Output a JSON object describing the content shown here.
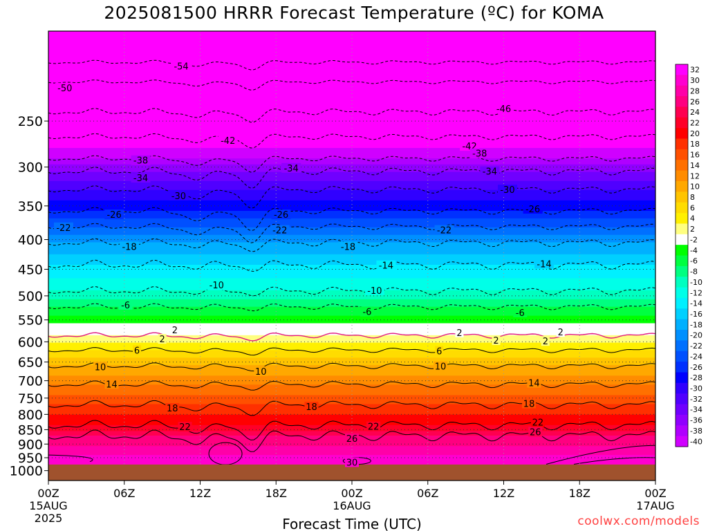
{
  "title": "2025081500 HRRR Forecast Temperature (ºC) for KOMA",
  "credit": "coolwx.com/models",
  "colors": {
    "ground": "#a0522d",
    "grid": "#9a9a9a",
    "zero_isotherm": "#e0187e"
  },
  "chart_data": {
    "type": "heatmap",
    "title": "2025081500 HRRR Forecast Temperature (ºC) for KOMA",
    "xlabel": "Forecast Time (UTC)",
    "ylabel": "",
    "x_range_hours": [
      0,
      48
    ],
    "y_range_hpa": [
      175,
      1040
    ],
    "y_scale": "log-pressure",
    "x_ticks": [
      {
        "hour": 0,
        "label": "00Z",
        "sub1": "15AUG",
        "sub2": "2025"
      },
      {
        "hour": 6,
        "label": "06Z",
        "sub1": "",
        "sub2": ""
      },
      {
        "hour": 12,
        "label": "12Z",
        "sub1": "",
        "sub2": ""
      },
      {
        "hour": 18,
        "label": "18Z",
        "sub1": "",
        "sub2": ""
      },
      {
        "hour": 24,
        "label": "00Z",
        "sub1": "16AUG",
        "sub2": ""
      },
      {
        "hour": 30,
        "label": "06Z",
        "sub1": "",
        "sub2": ""
      },
      {
        "hour": 36,
        "label": "12Z",
        "sub1": "",
        "sub2": ""
      },
      {
        "hour": 42,
        "label": "18Z",
        "sub1": "",
        "sub2": ""
      },
      {
        "hour": 48,
        "label": "00Z",
        "sub1": "17AUG",
        "sub2": ""
      }
    ],
    "y_ticks": [
      {
        "p": 250,
        "label": "250"
      },
      {
        "p": 300,
        "label": "300"
      },
      {
        "p": 350,
        "label": "350"
      },
      {
        "p": 400,
        "label": "400"
      },
      {
        "p": 450,
        "label": "450"
      },
      {
        "p": 500,
        "label": "500"
      },
      {
        "p": 550,
        "label": "550"
      },
      {
        "p": 600,
        "label": "600"
      },
      {
        "p": 650,
        "label": "650"
      },
      {
        "p": 700,
        "label": "700"
      },
      {
        "p": 750,
        "label": "750"
      },
      {
        "p": 800,
        "label": "800"
      },
      {
        "p": 850,
        "label": "850"
      },
      {
        "p": 900,
        "label": "900"
      },
      {
        "p": 950,
        "label": "950"
      },
      {
        "p": 1000,
        "label": "1000"
      }
    ],
    "surface_pressure_hpa": 976,
    "legend": {
      "labels": [
        "32",
        "30",
        "28",
        "26",
        "24",
        "22",
        "20",
        "18",
        "16",
        "14",
        "12",
        "10",
        "8",
        "6",
        "4",
        "2",
        "-2",
        "-4",
        "-6",
        "-8",
        "-10",
        "-12",
        "-14",
        "-16",
        "-18",
        "-20",
        "-22",
        "-24",
        "-26",
        "-28",
        "-30",
        "-32",
        "-34",
        "-36",
        "-38",
        "-40"
      ],
      "colors": [
        "#ff00ff",
        "#ff00d0",
        "#ff00a8",
        "#ff0080",
        "#ff0050",
        "#ff0028",
        "#ff0000",
        "#ff3000",
        "#ff5000",
        "#ff7000",
        "#ff8c00",
        "#ffa800",
        "#ffc400",
        "#ffdc00",
        "#fff000",
        "#ffff80",
        "#ffffff",
        "#00ff00",
        "#00ff40",
        "#00ff80",
        "#00ffc0",
        "#00ffe8",
        "#00f0ff",
        "#00d0ff",
        "#00b0ff",
        "#0090ff",
        "#0070ff",
        "#0050ff",
        "#0030ff",
        "#0000ff",
        "#3000ff",
        "#5000ff",
        "#7000ff",
        "#9000ff",
        "#b000ff",
        "#d000ff",
        "#ff00ff"
      ]
    },
    "isotherms": [
      {
        "t": -54,
        "p0": 198,
        "dip": 5,
        "wav": 1
      },
      {
        "t": -50,
        "p0": 214,
        "dip": 6,
        "wav": 1
      },
      {
        "t": -46,
        "p0": 241,
        "dip": 8,
        "wav": 2
      },
      {
        "t": -42,
        "p0": 266,
        "dip": 10,
        "wav": 2
      },
      {
        "t": -38,
        "p0": 290,
        "dip": 14,
        "wav": 2
      },
      {
        "t": -34,
        "p0": 305,
        "dip": 18,
        "wav": 3
      },
      {
        "t": -30,
        "p0": 328,
        "dip": 22,
        "wav": 3
      },
      {
        "t": -26,
        "p0": 357,
        "dip": 26,
        "wav": 3
      },
      {
        "t": -22,
        "p0": 380,
        "dip": 22,
        "wav": 3
      },
      {
        "t": -18,
        "p0": 405,
        "dip": 10,
        "wav": 4
      },
      {
        "t": -14,
        "p0": 442,
        "dip": 6,
        "wav": 5
      },
      {
        "t": -10,
        "p0": 490,
        "dip": 4,
        "wav": 5
      },
      {
        "t": -6,
        "p0": 522,
        "dip": 4,
        "wav": 4
      },
      {
        "t": 2,
        "p0": 585,
        "dip": 8,
        "wav": 4
      },
      {
        "t": 6,
        "p0": 620,
        "dip": 8,
        "wav": 4
      },
      {
        "t": 10,
        "p0": 660,
        "dip": 8,
        "wav": 5
      },
      {
        "t": 14,
        "p0": 710,
        "dip": 10,
        "wav": 6
      },
      {
        "t": 18,
        "p0": 770,
        "dip": 25,
        "wav": 8
      },
      {
        "t": 22,
        "p0": 835,
        "dip": 40,
        "wav": 10
      },
      {
        "t": 26,
        "p0": 870,
        "dip": 45,
        "wav": 12
      }
    ],
    "contour_labels": [
      {
        "text": "-54",
        "h": 10.5,
        "p": 201
      },
      {
        "text": "-50",
        "h": 1.3,
        "p": 219
      },
      {
        "text": "-46",
        "h": 36.0,
        "p": 238
      },
      {
        "text": "-42",
        "h": 14.2,
        "p": 270
      },
      {
        "text": "-42",
        "h": 33.3,
        "p": 276
      },
      {
        "text": "-38",
        "h": 7.3,
        "p": 292
      },
      {
        "text": "-38",
        "h": 34.1,
        "p": 284
      },
      {
        "text": "-34",
        "h": 7.3,
        "p": 313
      },
      {
        "text": "-34",
        "h": 19.2,
        "p": 301
      },
      {
        "text": "-34",
        "h": 34.9,
        "p": 305
      },
      {
        "text": "-30",
        "h": 10.3,
        "p": 336
      },
      {
        "text": "-30",
        "h": 36.3,
        "p": 328
      },
      {
        "text": "-26",
        "h": 5.2,
        "p": 362
      },
      {
        "text": "-26",
        "h": 18.4,
        "p": 362
      },
      {
        "text": "-26",
        "h": 38.3,
        "p": 354
      },
      {
        "text": "-22",
        "h": 1.2,
        "p": 381
      },
      {
        "text": "-22",
        "h": 18.3,
        "p": 385
      },
      {
        "text": "-22",
        "h": 31.3,
        "p": 385
      },
      {
        "text": "-18",
        "h": 6.4,
        "p": 411
      },
      {
        "text": "-18",
        "h": 23.7,
        "p": 411
      },
      {
        "text": "-14",
        "h": 26.7,
        "p": 443
      },
      {
        "text": "-14",
        "h": 39.2,
        "p": 440
      },
      {
        "text": "-10",
        "h": 13.3,
        "p": 479
      },
      {
        "text": "-10",
        "h": 25.8,
        "p": 489
      },
      {
        "text": "-6",
        "h": 6.1,
        "p": 518
      },
      {
        "text": "-6",
        "h": 25.2,
        "p": 532
      },
      {
        "text": "-6",
        "h": 37.3,
        "p": 534
      },
      {
        "text": "2",
        "h": 10.0,
        "p": 572
      },
      {
        "text": "2",
        "h": 9.0,
        "p": 593
      },
      {
        "text": "2",
        "h": 32.5,
        "p": 578
      },
      {
        "text": "2",
        "h": 40.5,
        "p": 577
      },
      {
        "text": "2",
        "h": 35.4,
        "p": 596
      },
      {
        "text": "2",
        "h": 39.3,
        "p": 598
      },
      {
        "text": "6",
        "h": 7.0,
        "p": 620
      },
      {
        "text": "6",
        "h": 30.9,
        "p": 622
      },
      {
        "text": "10",
        "h": 4.1,
        "p": 662
      },
      {
        "text": "10",
        "h": 16.8,
        "p": 674
      },
      {
        "text": "10",
        "h": 31.0,
        "p": 661
      },
      {
        "text": "14",
        "h": 5.0,
        "p": 709
      },
      {
        "text": "14",
        "h": 38.4,
        "p": 706
      },
      {
        "text": "18",
        "h": 9.8,
        "p": 780
      },
      {
        "text": "18",
        "h": 20.8,
        "p": 776
      },
      {
        "text": "18",
        "h": 38.0,
        "p": 766
      },
      {
        "text": "22",
        "h": 10.8,
        "p": 840
      },
      {
        "text": "22",
        "h": 25.7,
        "p": 839
      },
      {
        "text": "22",
        "h": 38.7,
        "p": 825
      },
      {
        "text": "26",
        "h": 24.0,
        "p": 880
      },
      {
        "text": "26",
        "h": 38.5,
        "p": 857
      },
      {
        "text": "30",
        "h": 24.0,
        "p": 967
      }
    ],
    "grid": true
  }
}
